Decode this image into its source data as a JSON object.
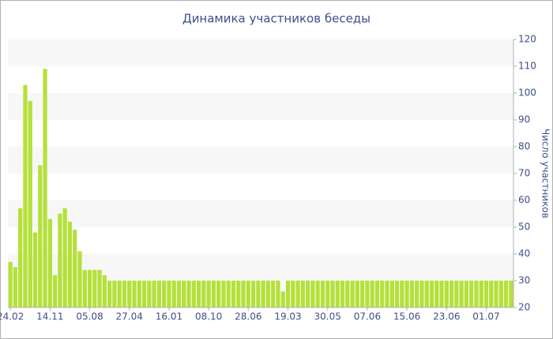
{
  "chart_data": {
    "type": "bar",
    "title": "Динамика участников беседы",
    "y_axis_label": "Число участников",
    "categories": [
      "24.02",
      null,
      null,
      null,
      null,
      null,
      null,
      null,
      "14.11",
      null,
      null,
      null,
      null,
      null,
      null,
      null,
      "05.08",
      null,
      null,
      null,
      null,
      null,
      null,
      null,
      "27.04",
      null,
      null,
      null,
      null,
      null,
      null,
      null,
      "16.01",
      null,
      null,
      null,
      null,
      null,
      null,
      null,
      "08.10",
      null,
      null,
      null,
      null,
      null,
      null,
      null,
      "28.06",
      null,
      null,
      null,
      null,
      null,
      null,
      null,
      "19.03",
      null,
      null,
      null,
      null,
      null,
      null,
      null,
      "30.05",
      null,
      null,
      null,
      null,
      null,
      null,
      null,
      "07.06",
      null,
      null,
      null,
      null,
      null,
      null,
      null,
      "15.06",
      null,
      null,
      null,
      null,
      null,
      null,
      null,
      "23.06",
      null,
      null,
      null,
      null,
      null,
      null,
      null,
      "01.07",
      null,
      null,
      null,
      null,
      null
    ],
    "values": [
      37,
      35,
      57,
      103,
      97,
      48,
      73,
      109,
      53,
      32,
      55,
      57,
      52,
      49,
      41,
      34,
      34,
      34,
      34,
      32,
      30,
      30,
      30,
      30,
      30,
      30,
      30,
      30,
      30,
      30,
      30,
      30,
      30,
      30,
      30,
      30,
      30,
      30,
      30,
      30,
      30,
      30,
      30,
      30,
      30,
      30,
      30,
      30,
      30,
      30,
      30,
      30,
      30,
      30,
      30,
      26,
      30,
      30,
      30,
      30,
      30,
      30,
      30,
      30,
      30,
      30,
      30,
      30,
      30,
      30,
      30,
      30,
      30,
      30,
      30,
      30,
      30,
      30,
      30,
      30,
      30,
      30,
      30,
      30,
      30,
      30,
      30,
      30,
      30,
      30,
      30,
      30,
      30,
      30,
      30,
      30,
      30,
      30,
      30,
      30,
      30,
      30
    ],
    "color": "#b5e03c",
    "ylim": [
      20,
      120
    ],
    "yticks": [
      20,
      30,
      40,
      50,
      60,
      70,
      80,
      90,
      100,
      110,
      120
    ],
    "grid": "bands"
  }
}
